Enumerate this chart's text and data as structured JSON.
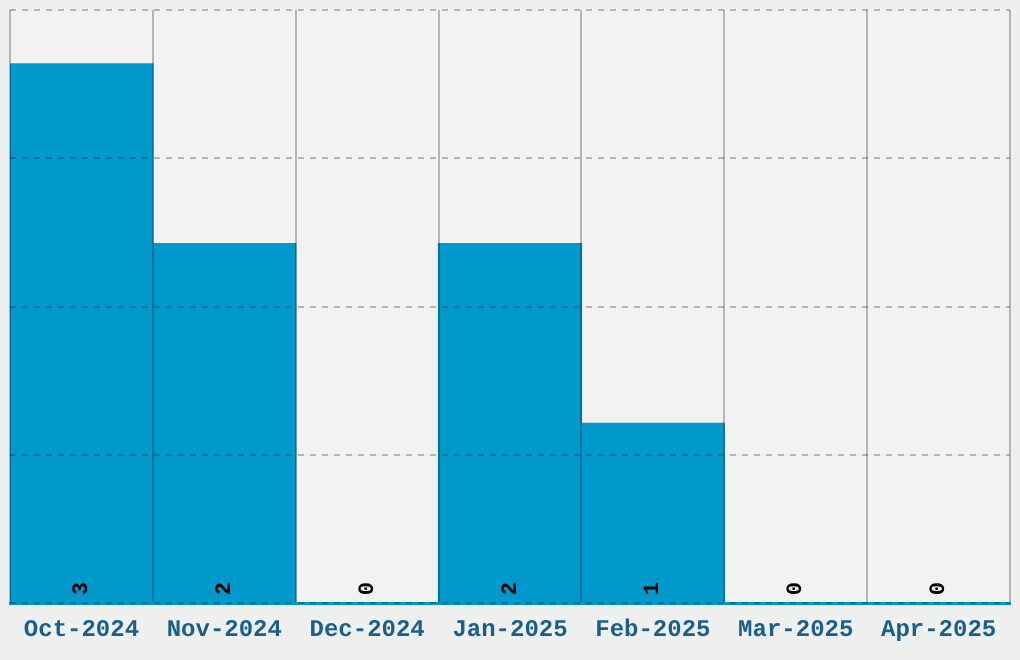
{
  "chart_data": {
    "type": "bar",
    "categories": [
      "Oct-2024",
      "Nov-2024",
      "Dec-2024",
      "Jan-2025",
      "Feb-2025",
      "Mar-2025",
      "Apr-2025"
    ],
    "values": [
      3,
      2,
      0,
      2,
      1,
      0,
      0
    ],
    "color": "#0099cc",
    "ylim": [
      0,
      3.3
    ],
    "yticks": [
      {
        "value": 0,
        "label": null
      },
      {
        "value": 0.825,
        "label": null
      },
      {
        "value": 1.65,
        "label": null
      },
      {
        "value": 2.475,
        "label": null
      },
      {
        "value": 3.3,
        "label": null
      }
    ],
    "tick_labels": "x",
    "grid": true,
    "data_labels": true,
    "legend": false
  }
}
